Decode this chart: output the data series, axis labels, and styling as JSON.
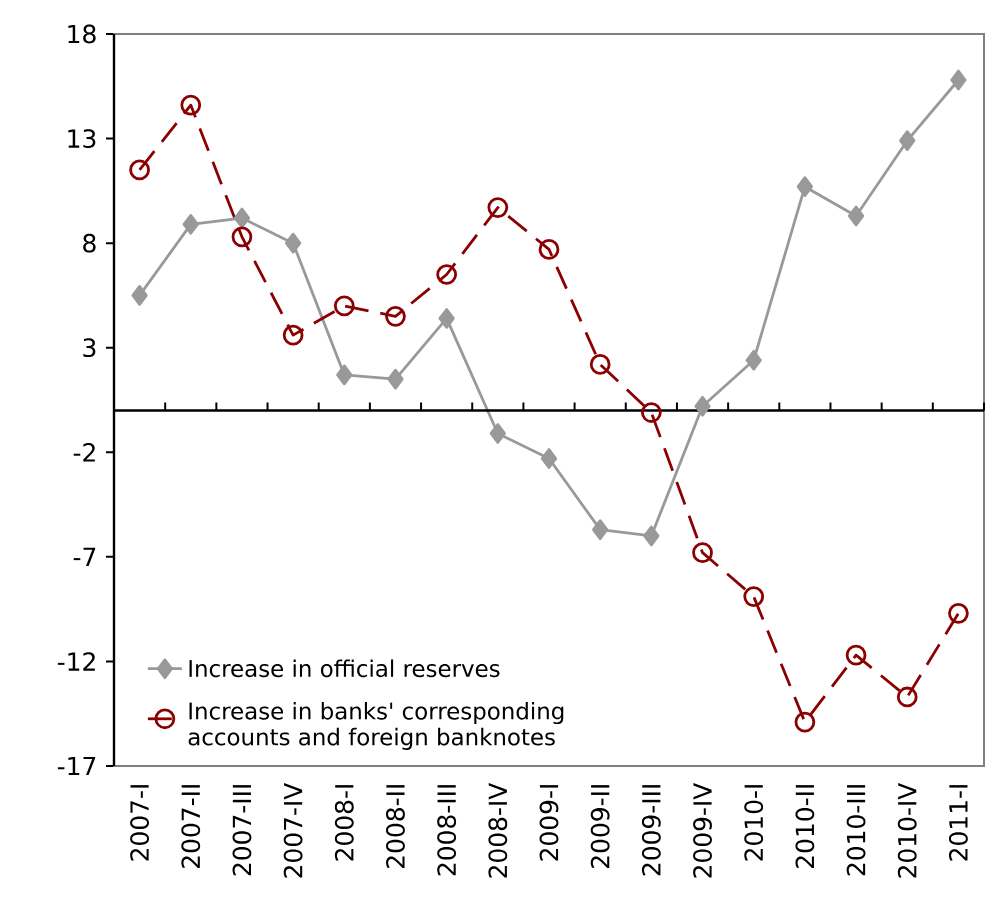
{
  "chart_data": {
    "type": "line",
    "categories": [
      "2007-I",
      "2007-II",
      "2007-III",
      "2007-IV",
      "2008-I",
      "2008-II",
      "2008-III",
      "2008-IV",
      "2009-I",
      "2009-II",
      "2009-III",
      "2009-IV",
      "2010-I",
      "2010-II",
      "2010-III",
      "2010-IV",
      "2011-I"
    ],
    "series": [
      {
        "name": "Increase in official reserves",
        "color": "#999999",
        "marker": "diamond",
        "line_style": "solid",
        "values": [
          5.5,
          8.9,
          9.2,
          8.0,
          1.7,
          1.5,
          4.4,
          -1.1,
          -2.3,
          -5.7,
          -6.0,
          0.2,
          2.4,
          10.7,
          9.3,
          12.9,
          15.8
        ]
      },
      {
        "name": "Increase in banks' corresponding accounts and foreign banknotes",
        "color": "#8b0000",
        "marker": "circle",
        "line_style": "dashed",
        "values": [
          11.5,
          14.6,
          8.3,
          3.6,
          5.0,
          4.5,
          6.5,
          9.7,
          7.7,
          2.2,
          -0.1,
          -6.8,
          -8.9,
          -14.9,
          -11.7,
          -13.7,
          -9.7
        ]
      }
    ],
    "ylim": [
      -17,
      18
    ],
    "yticks": [
      -17,
      -12,
      -7,
      -2,
      3,
      8,
      13,
      18
    ],
    "grid": false,
    "legend": "bottom left"
  }
}
